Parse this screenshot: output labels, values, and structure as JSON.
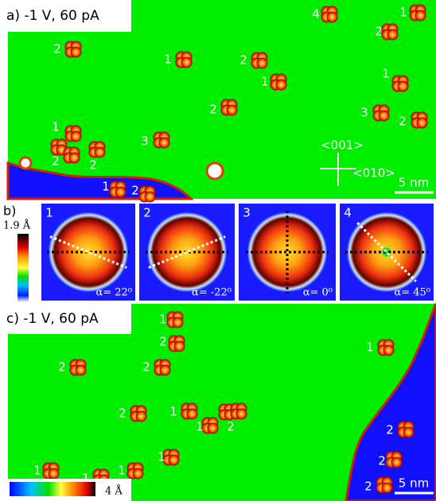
{
  "panel_a": {
    "title": "a) -1 V, 60 pA",
    "labels": [
      "4",
      "1",
      "2",
      "2",
      "1",
      "2",
      "1",
      "1",
      "2",
      "3",
      "2",
      "1",
      "3",
      "2",
      "2",
      "1",
      "2"
    ],
    "directions": [
      "<001>",
      "<010>"
    ],
    "scale_bar": "5 nm"
  },
  "panel_b": {
    "label": "b)",
    "colorbar_max": "1.9 Å",
    "insets": [
      {
        "number": "1",
        "angle": "α= 22⁰"
      },
      {
        "number": "2",
        "angle": "α= -22⁰"
      },
      {
        "number": "3",
        "angle": "α= 0⁰"
      },
      {
        "number": "4",
        "angle": "α= 45⁰"
      }
    ]
  },
  "panel_c": {
    "title": "c) -1 V, 60 pA",
    "labels": [
      "1",
      "2",
      "1",
      "2",
      "2",
      "2",
      "1",
      "1",
      "2",
      "2",
      "1",
      "2",
      "1",
      "1",
      "1",
      "2"
    ],
    "scale_bar": "5 nm",
    "colorbar_label": "4 Å"
  }
}
